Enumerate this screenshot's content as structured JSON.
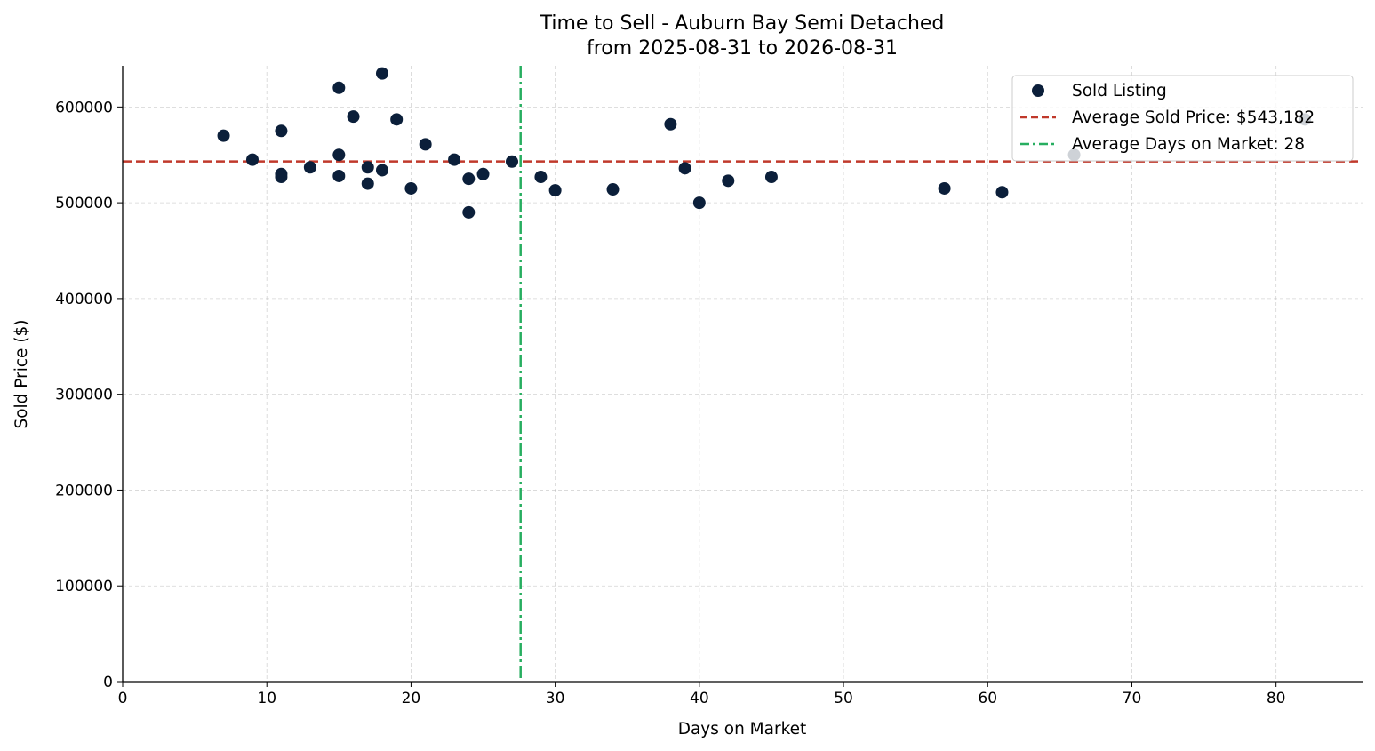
{
  "chart_data": {
    "type": "scatter",
    "title": "Time to Sell - Auburn Bay Semi Detached",
    "subtitle": "from 2025-08-31 to 2026-08-31",
    "xlabel": "Days on Market",
    "ylabel": "Sold Price ($)",
    "xlim": [
      0,
      86
    ],
    "ylim": [
      0,
      643000
    ],
    "xticks": [
      0,
      10,
      20,
      30,
      40,
      50,
      60,
      70,
      80
    ],
    "yticks": [
      0,
      100000,
      200000,
      300000,
      400000,
      500000,
      600000
    ],
    "grid": true,
    "legend_position": "top-right",
    "series": [
      {
        "name": "Sold Listing",
        "color": "#0b1f3a",
        "points": [
          {
            "x": 7,
            "y": 570000
          },
          {
            "x": 9,
            "y": 545000
          },
          {
            "x": 11,
            "y": 575000
          },
          {
            "x": 11,
            "y": 530000
          },
          {
            "x": 11,
            "y": 527000
          },
          {
            "x": 13,
            "y": 537000
          },
          {
            "x": 15,
            "y": 620000
          },
          {
            "x": 15,
            "y": 550000
          },
          {
            "x": 15,
            "y": 528000
          },
          {
            "x": 16,
            "y": 590000
          },
          {
            "x": 17,
            "y": 537000
          },
          {
            "x": 17,
            "y": 520000
          },
          {
            "x": 18,
            "y": 635000
          },
          {
            "x": 18,
            "y": 534000
          },
          {
            "x": 19,
            "y": 587000
          },
          {
            "x": 20,
            "y": 515000
          },
          {
            "x": 21,
            "y": 561000
          },
          {
            "x": 23,
            "y": 545000
          },
          {
            "x": 24,
            "y": 525000
          },
          {
            "x": 24,
            "y": 490000
          },
          {
            "x": 25,
            "y": 530000
          },
          {
            "x": 27,
            "y": 543000
          },
          {
            "x": 29,
            "y": 527000
          },
          {
            "x": 30,
            "y": 513000
          },
          {
            "x": 34,
            "y": 514000
          },
          {
            "x": 38,
            "y": 582000
          },
          {
            "x": 39,
            "y": 536000
          },
          {
            "x": 40,
            "y": 500000
          },
          {
            "x": 42,
            "y": 523000
          },
          {
            "x": 45,
            "y": 527000
          },
          {
            "x": 57,
            "y": 515000
          },
          {
            "x": 61,
            "y": 511000
          },
          {
            "x": 66,
            "y": 550000
          },
          {
            "x": 82,
            "y": 587000
          }
        ]
      }
    ],
    "reference_lines": [
      {
        "name": "Average Sold Price: $543,182",
        "orientation": "horizontal",
        "value": 543182,
        "color": "#c0392b",
        "style": "dashed"
      },
      {
        "name": "Average Days on Market: 28",
        "orientation": "vertical",
        "value": 27.6,
        "color": "#27ae60",
        "style": "dash-dot"
      }
    ]
  }
}
